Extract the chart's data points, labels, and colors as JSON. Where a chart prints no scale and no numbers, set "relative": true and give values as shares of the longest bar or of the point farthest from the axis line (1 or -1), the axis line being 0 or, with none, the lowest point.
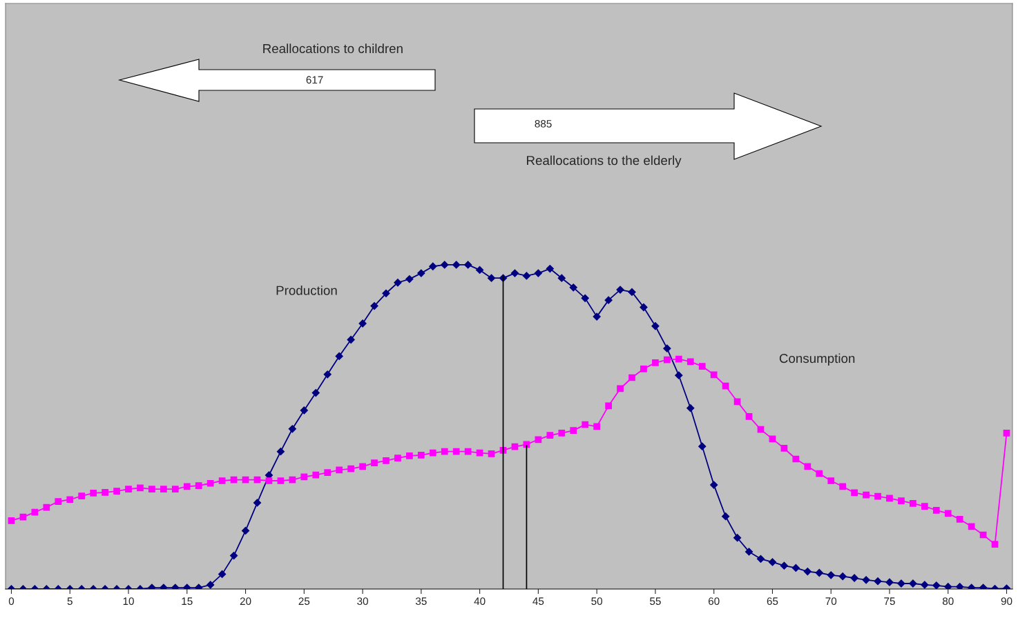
{
  "chart_data": {
    "type": "line",
    "relative": true,
    "categories": [
      "0",
      null,
      null,
      null,
      null,
      "5",
      null,
      null,
      null,
      null,
      "10",
      null,
      null,
      null,
      null,
      "15",
      null,
      null,
      null,
      null,
      "20",
      null,
      null,
      null,
      null,
      "25",
      null,
      null,
      null,
      null,
      "30",
      null,
      null,
      null,
      null,
      "35",
      null,
      null,
      null,
      null,
      "40",
      null,
      null,
      null,
      null,
      "45",
      null,
      null,
      null,
      null,
      "50",
      null,
      null,
      null,
      null,
      "55",
      null,
      null,
      null,
      null,
      "60",
      null,
      null,
      null,
      null,
      "65",
      null,
      null,
      null,
      null,
      "70",
      null,
      null,
      null,
      null,
      "75",
      null,
      null,
      null,
      null,
      "80",
      null,
      null,
      null,
      null,
      "90"
    ],
    "series": [
      {
        "color": "#000080",
        "marker": "diamond",
        "values": [
          0,
          0,
          0,
          0,
          0,
          0,
          0,
          0,
          0,
          0,
          0,
          0,
          0.004,
          0.004,
          0.004,
          0.004,
          0.004,
          0.013,
          0.046,
          0.103,
          0.18,
          0.266,
          0.351,
          0.424,
          0.494,
          0.551,
          0.605,
          0.662,
          0.718,
          0.769,
          0.819,
          0.873,
          0.912,
          0.945,
          0.956,
          0.974,
          0.995,
          1.0,
          1.0,
          1.0,
          0.984,
          0.959,
          0.959,
          0.974,
          0.966,
          0.974,
          0.988,
          0.959,
          0.93,
          0.897,
          0.84,
          0.891,
          0.923,
          0.916,
          0.869,
          0.811,
          0.742,
          0.659,
          0.558,
          0.44,
          0.321,
          0.224,
          0.158,
          0.115,
          0.093,
          0.083,
          0.072,
          0.065,
          0.054,
          0.05,
          0.043,
          0.039,
          0.034,
          0.028,
          0.024,
          0.021,
          0.017,
          0.017,
          0.013,
          0.011,
          0.007,
          0.007,
          0.004,
          0.004,
          0.001,
          0.002
        ]
      },
      {
        "color": "#ff00ff",
        "marker": "square",
        "values": [
          0.211,
          0.222,
          0.237,
          0.252,
          0.27,
          0.276,
          0.287,
          0.296,
          0.298,
          0.302,
          0.308,
          0.312,
          0.308,
          0.308,
          0.308,
          0.316,
          0.319,
          0.326,
          0.334,
          0.337,
          0.337,
          0.337,
          0.334,
          0.334,
          0.337,
          0.346,
          0.352,
          0.359,
          0.367,
          0.371,
          0.378,
          0.389,
          0.396,
          0.404,
          0.411,
          0.413,
          0.42,
          0.424,
          0.424,
          0.424,
          0.42,
          0.417,
          0.428,
          0.439,
          0.446,
          0.461,
          0.474,
          0.481,
          0.489,
          0.507,
          0.501,
          0.565,
          0.618,
          0.652,
          0.679,
          0.698,
          0.707,
          0.709,
          0.701,
          0.687,
          0.661,
          0.626,
          0.578,
          0.532,
          0.492,
          0.463,
          0.434,
          0.401,
          0.378,
          0.356,
          0.334,
          0.316,
          0.297,
          0.29,
          0.286,
          0.28,
          0.272,
          0.264,
          0.255,
          0.243,
          0.233,
          0.215,
          0.193,
          0.167,
          0.138,
          0.481
        ]
      },
      {
        "type": "bar",
        "color": "#000000",
        "values": [
          null,
          null,
          null,
          null,
          null,
          null,
          null,
          null,
          null,
          null,
          null,
          null,
          null,
          null,
          null,
          null,
          null,
          null,
          null,
          null,
          null,
          null,
          null,
          null,
          null,
          null,
          null,
          null,
          null,
          null,
          null,
          null,
          null,
          null,
          null,
          null,
          null,
          null,
          null,
          null,
          null,
          null,
          0.965,
          null,
          0.444,
          null,
          null,
          null,
          null,
          null,
          null,
          null,
          null,
          null,
          null,
          null,
          null,
          null,
          null,
          null,
          null,
          null,
          null,
          null,
          null,
          null,
          null,
          null,
          null,
          null,
          null,
          null,
          null,
          null,
          null,
          null,
          null,
          null,
          null,
          null,
          null,
          null,
          null,
          null,
          null,
          null
        ]
      }
    ],
    "annotations": [
      "Reallocations to children",
      "617",
      "885",
      "Reallocations to the elderly",
      "Production",
      "Consumption"
    ]
  }
}
